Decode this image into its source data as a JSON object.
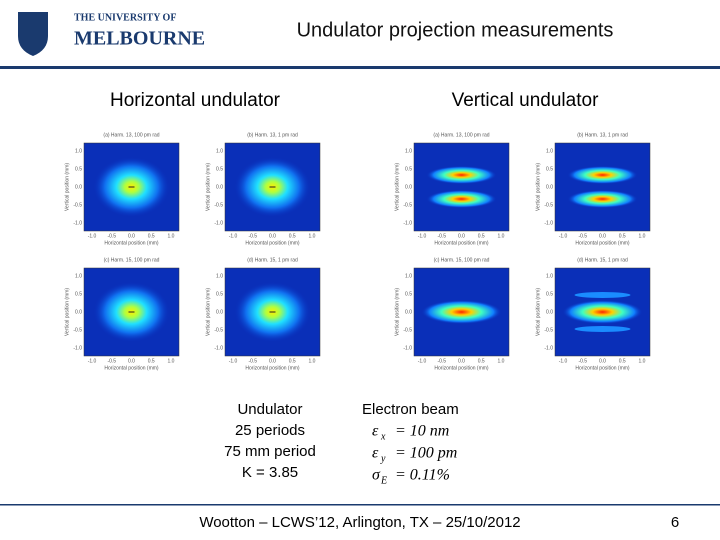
{
  "header": {
    "logo_line1": "THE UNIVERSITY OF",
    "logo_line2": "MELBOURNE",
    "title": "Undulator projection measurements"
  },
  "columns": [
    "Horizontal undulator",
    "Vertical undulator"
  ],
  "plots": [
    {
      "title": "(a) Harm. 13, 100 pm rad",
      "xlabel": "Horizontal position (mm)",
      "ylabel": "Vertical position (mm)"
    },
    {
      "title": "(b) Harm. 13, 1 pm rad",
      "xlabel": "Horizontal position (mm)",
      "ylabel": "Vertical position (mm)"
    },
    {
      "title": "(c) Harm. 15, 100 pm rad",
      "xlabel": "Horizontal position (mm)",
      "ylabel": "Vertical position (mm)"
    },
    {
      "title": "(d) Harm. 15, 1 pm rad",
      "xlabel": "Horizontal position (mm)",
      "ylabel": "Vertical position (mm)"
    },
    {
      "title": "(a) Harm. 13, 100 pm rad",
      "xlabel": "Horizontal position (mm)",
      "ylabel": "Vertical position (mm)"
    },
    {
      "title": "(b) Harm. 13, 1 pm rad",
      "xlabel": "Horizontal position (mm)",
      "ylabel": "Vertical position (mm)"
    },
    {
      "title": "(c) Harm. 15, 100 pm rad",
      "xlabel": "Horizontal position (mm)",
      "ylabel": "Vertical position (mm)"
    },
    {
      "title": "(d) Harm. 15, 1 pm rad",
      "xlabel": "Horizontal position (mm)",
      "ylabel": "Vertical position (mm)"
    }
  ],
  "plot_ticks": {
    "x": [
      "-1.0",
      "-0.5",
      "0.0",
      "0.5",
      "1.0"
    ],
    "y": [
      "-1.0",
      "-0.5",
      "0.0",
      "0.5",
      "1.0"
    ]
  },
  "undulator": [
    "Undulator",
    "25 periods",
    "75 mm period",
    "K = 3.85"
  ],
  "electron_beam": {
    "title": "Electron beam",
    "items": [
      {
        "symbol": "ε",
        "sub": "x",
        "value": "= 10 nm"
      },
      {
        "symbol": "ε",
        "sub": "y",
        "value": "= 100 pm"
      },
      {
        "symbol": "σ",
        "sub": "E",
        "value": "= 0.11%"
      }
    ]
  },
  "footer": {
    "text": "Wootton – LCWS’12, Arlington, TX – 25/10/2012",
    "page": "6"
  }
}
